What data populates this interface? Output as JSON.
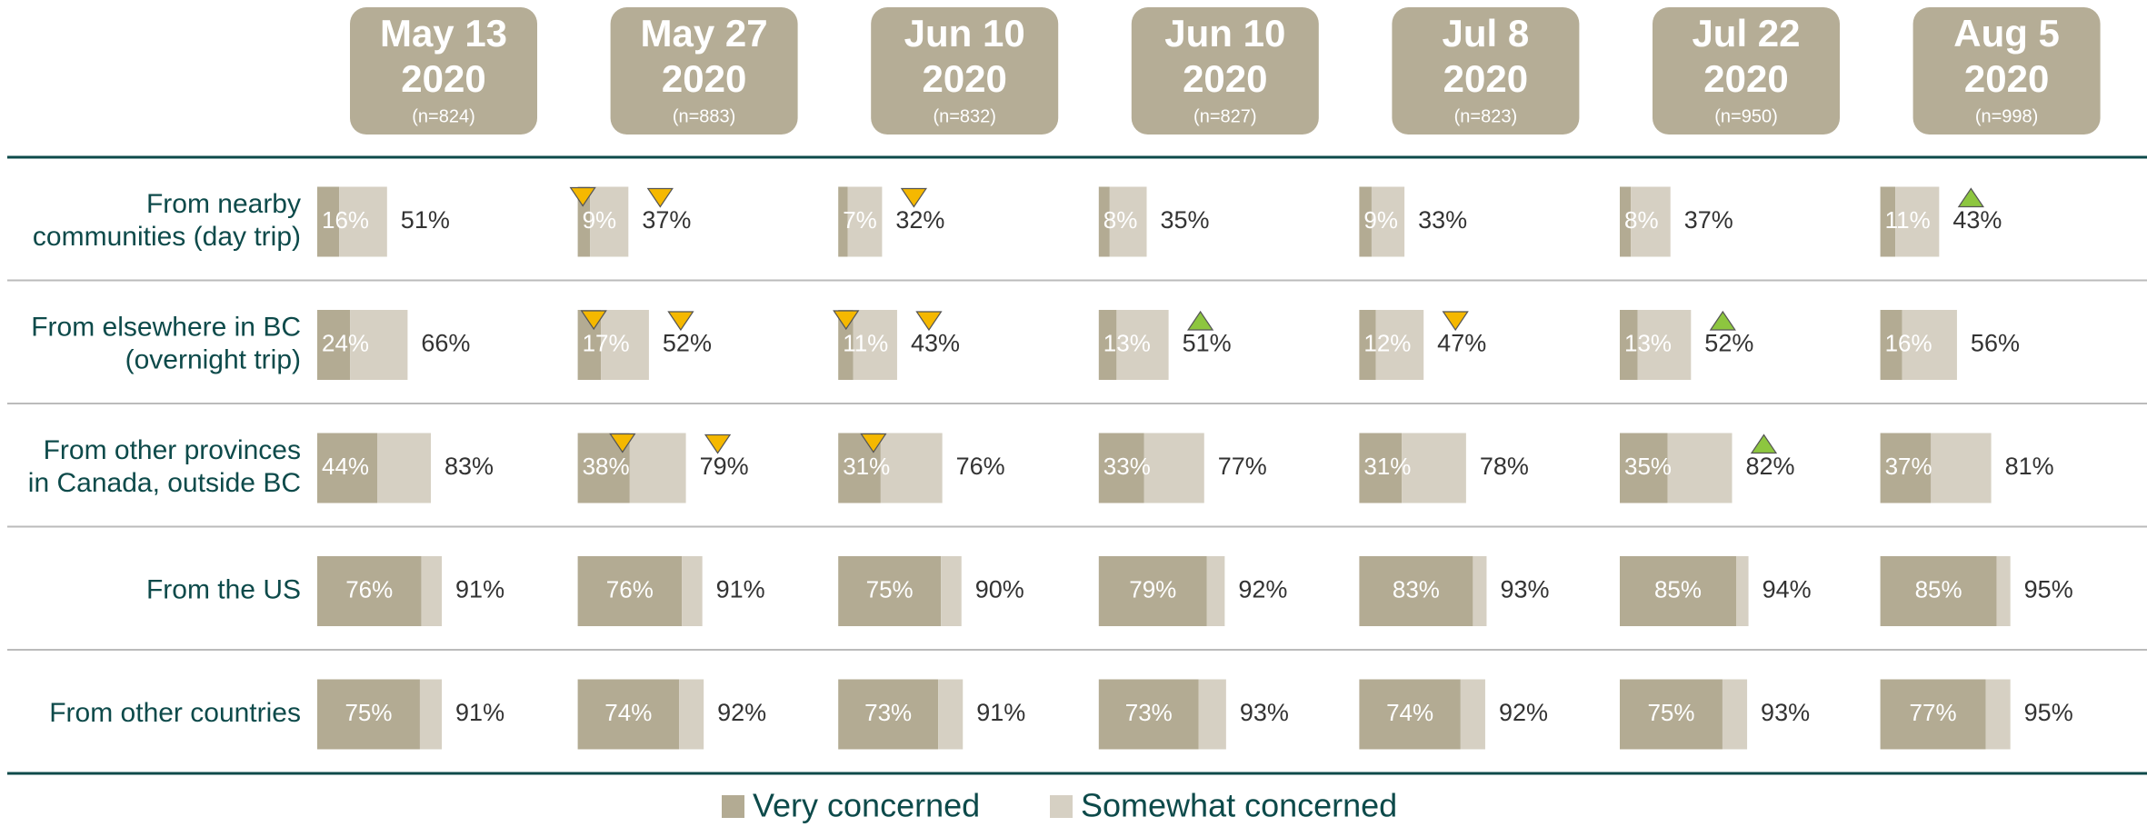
{
  "chart_data": {
    "type": "bar",
    "columns": [
      {
        "date": "May 13",
        "year": "2020",
        "n": "(n=824)"
      },
      {
        "date": "May 27",
        "year": "2020",
        "n": "(n=883)"
      },
      {
        "date": "Jun 10",
        "year": "2020",
        "n": "(n=832)"
      },
      {
        "date": "Jun 10",
        "year": "2020",
        "n": "(n=827)"
      },
      {
        "date": "Jul 8",
        "year": "2020",
        "n": "(n=823)"
      },
      {
        "date": "Jul 22",
        "year": "2020",
        "n": "(n=950)"
      },
      {
        "date": "Aug 5",
        "year": "2020",
        "n": "(n=998)"
      }
    ],
    "categories": [
      [
        "From nearby",
        "communities (day trip)"
      ],
      [
        "From elsewhere in BC",
        "(overnight trip)"
      ],
      [
        "From other provinces",
        "in Canada, outside BC"
      ],
      [
        "From the US"
      ],
      [
        "From other countries"
      ]
    ],
    "xlim": [
      0,
      100
    ],
    "series": [
      {
        "name": "Very concerned",
        "color": "#b3ab93",
        "values": [
          [
            16,
            9,
            7,
            8,
            9,
            8,
            11
          ],
          [
            24,
            17,
            11,
            13,
            12,
            13,
            16
          ],
          [
            44,
            38,
            31,
            33,
            31,
            35,
            37
          ],
          [
            76,
            76,
            75,
            79,
            83,
            85,
            85
          ],
          [
            75,
            74,
            73,
            73,
            74,
            75,
            77
          ]
        ],
        "value_labels": [
          [
            "16%",
            "9%",
            "7%",
            "8%",
            "9%",
            "8%",
            "11%"
          ],
          [
            "24%",
            "17%",
            "11%",
            "13%",
            "12%",
            "13%",
            "16%"
          ],
          [
            "44%",
            "38%",
            "31%",
            "33%",
            "31%",
            "35%",
            "37%"
          ],
          [
            "76%",
            "76%",
            "75%",
            "79%",
            "83%",
            "85%",
            "85%"
          ],
          [
            "75%",
            "74%",
            "73%",
            "73%",
            "74%",
            "75%",
            "77%"
          ]
        ],
        "changes": [
          [
            null,
            "down",
            null,
            null,
            null,
            null,
            null
          ],
          [
            null,
            "down",
            "down",
            null,
            null,
            null,
            null
          ],
          [
            null,
            "down",
            "down",
            null,
            null,
            null,
            null
          ],
          [
            null,
            null,
            null,
            null,
            null,
            null,
            null
          ],
          [
            null,
            null,
            null,
            null,
            null,
            null,
            null
          ]
        ]
      },
      {
        "name": "Somewhat concerned",
        "color": "#d6d0c3",
        "values": [
          [
            35,
            28,
            25,
            27,
            24,
            29,
            32
          ],
          [
            42,
            35,
            32,
            38,
            35,
            39,
            40
          ],
          [
            39,
            41,
            45,
            44,
            47,
            47,
            44
          ],
          [
            15,
            15,
            15,
            13,
            10,
            9,
            10
          ],
          [
            16,
            18,
            18,
            20,
            18,
            18,
            18
          ]
        ]
      }
    ],
    "totals": {
      "values": [
        [
          51,
          37,
          32,
          35,
          33,
          37,
          43
        ],
        [
          66,
          52,
          43,
          51,
          47,
          52,
          56
        ],
        [
          83,
          79,
          76,
          77,
          78,
          82,
          81
        ],
        [
          91,
          91,
          90,
          92,
          93,
          94,
          95
        ],
        [
          91,
          92,
          91,
          93,
          92,
          93,
          95
        ]
      ],
      "value_labels": [
        [
          "51%",
          "37%",
          "32%",
          "35%",
          "33%",
          "37%",
          "43%"
        ],
        [
          "66%",
          "52%",
          "43%",
          "51%",
          "47%",
          "52%",
          "56%"
        ],
        [
          "83%",
          "79%",
          "76%",
          "77%",
          "78%",
          "82%",
          "81%"
        ],
        [
          "91%",
          "91%",
          "90%",
          "92%",
          "93%",
          "94%",
          "95%"
        ],
        [
          "91%",
          "92%",
          "91%",
          "93%",
          "92%",
          "93%",
          "95%"
        ]
      ],
      "changes": [
        [
          null,
          "down",
          "down",
          null,
          null,
          null,
          "up"
        ],
        [
          null,
          "down",
          "down",
          "up",
          "down",
          "up",
          null
        ],
        [
          null,
          "down",
          null,
          null,
          null,
          "up",
          null
        ],
        [
          null,
          null,
          null,
          null,
          null,
          null,
          null
        ],
        [
          null,
          null,
          null,
          null,
          null,
          null,
          null
        ]
      ]
    },
    "change_colors": {
      "up": "#8dc63f",
      "down": "#f5b800"
    },
    "header_color": "#b5ad96"
  }
}
